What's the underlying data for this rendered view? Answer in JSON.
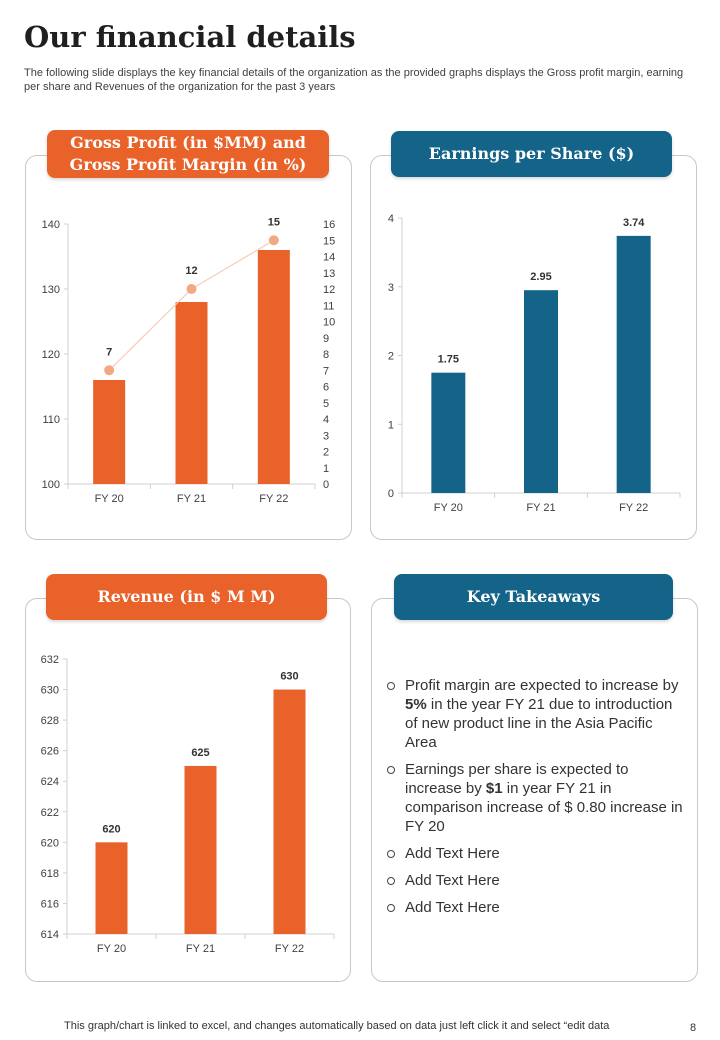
{
  "header": {
    "title": "Our financial details",
    "subtitle": "The following slide displays the key financial details of the organization as the provided graphs displays the Gross profit margin, earning per share and Revenues of the organization for the past 3 years"
  },
  "panels": {
    "gross_profit": {
      "title_line1": "Gross Profit (in $MM) and",
      "title_line2": "Gross Profit Margin (in %)"
    },
    "eps": {
      "title": "Earnings per Share ($)"
    },
    "revenue": {
      "title": "Revenue (in $ M M)"
    },
    "takeaways": {
      "title": "Key Takeaways",
      "items": [
        {
          "pre": "Profit margin are expected to increase by ",
          "bold": "5%",
          "post": " in the year FY 21 due to introduction of new product line in the Asia Pacific Area"
        },
        {
          "pre": "Earnings per share is expected to increase by ",
          "bold": "$1",
          "post": " in year FY 21 in comparison increase of $ 0.80 increase in FY 20"
        },
        {
          "pre": "Add Text Here",
          "bold": "",
          "post": ""
        },
        {
          "pre": "Add Text Here",
          "bold": "",
          "post": ""
        },
        {
          "pre": "Add Text Here",
          "bold": "",
          "post": ""
        }
      ]
    }
  },
  "footer": {
    "note": "This graph/chart is linked to excel, and changes automatically based on data just left click it and select “edit data",
    "page_number": "8"
  },
  "colors": {
    "orange": "#e8622a",
    "blue": "#136488",
    "marker": "#f2a883",
    "line": "#f6cdb8"
  },
  "chart_data": [
    {
      "id": "gross_profit",
      "type": "bar",
      "title": "Gross Profit (in $MM) and Gross Profit Margin (in %)",
      "categories": [
        "FY 20",
        "FY 21",
        "FY 22"
      ],
      "series": [
        {
          "name": "Gross Profit (in $MM)",
          "kind": "bar",
          "axis": "left",
          "values": [
            116,
            128,
            136
          ]
        },
        {
          "name": "Gross Profit Margin (in %)",
          "kind": "line",
          "axis": "right",
          "values": [
            7,
            12,
            15
          ],
          "labels": [
            "7",
            "12",
            "15"
          ]
        }
      ],
      "ylim": [
        100,
        140
      ],
      "yticks": [
        100,
        110,
        120,
        130,
        140
      ],
      "y2lim": [
        0,
        16
      ],
      "y2ticks": [
        0,
        1,
        2,
        3,
        4,
        5,
        6,
        7,
        8,
        9,
        10,
        11,
        12,
        13,
        14,
        15,
        16
      ]
    },
    {
      "id": "eps",
      "type": "bar",
      "title": "Earnings per Share ($)",
      "categories": [
        "FY 20",
        "FY 21",
        "FY 22"
      ],
      "values": [
        1.75,
        2.95,
        3.74
      ],
      "labels": [
        "1.75",
        "2.95",
        "3.74"
      ],
      "ylim": [
        0,
        4
      ],
      "yticks": [
        0,
        1,
        2,
        3,
        4
      ]
    },
    {
      "id": "revenue",
      "type": "bar",
      "title": "Revenue (in $ M M)",
      "categories": [
        "FY 20",
        "FY 21",
        "FY 22"
      ],
      "values": [
        620,
        625,
        630
      ],
      "labels": [
        "620",
        "625",
        "630"
      ],
      "ylim": [
        614,
        632
      ],
      "yticks": [
        614,
        616,
        618,
        620,
        622,
        624,
        626,
        628,
        630,
        632
      ]
    }
  ]
}
